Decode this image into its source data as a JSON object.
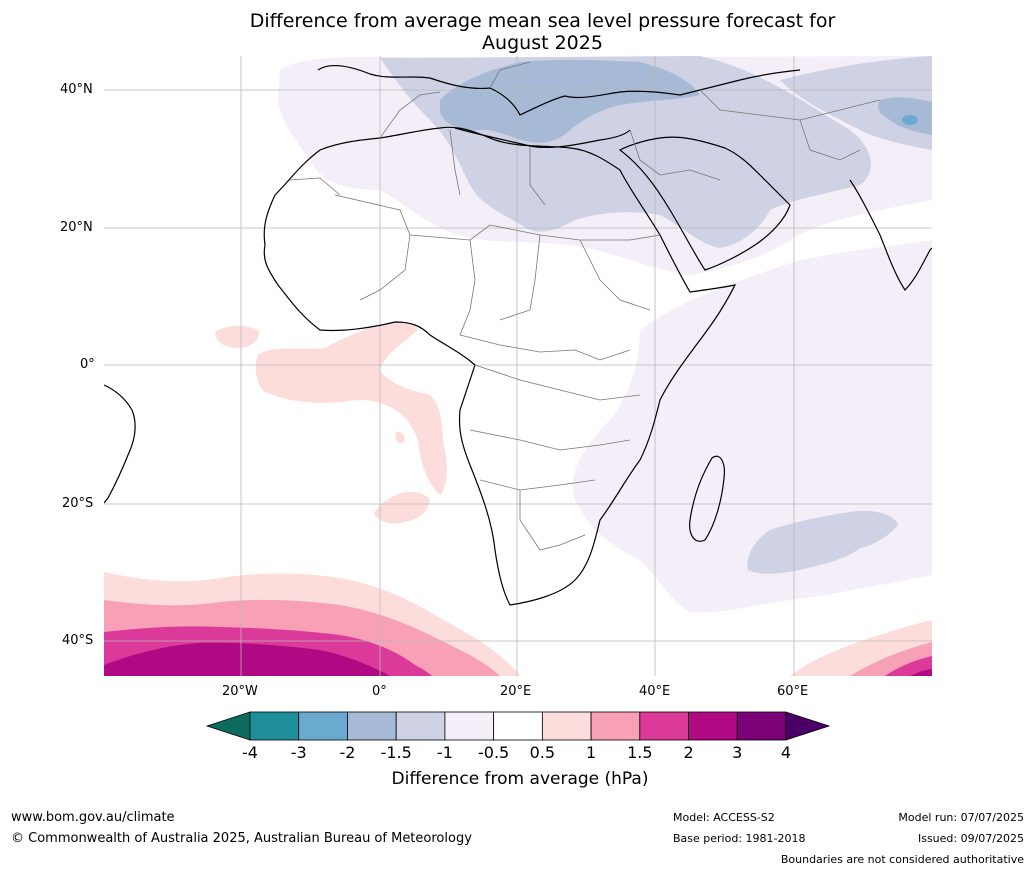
{
  "title_line1": "Difference from average mean sea level pressure forecast for",
  "title_line2": "August 2025",
  "lat_labels": [
    "40°N",
    "20°N",
    "0°",
    "20°S",
    "40°S"
  ],
  "lon_labels": [
    "20°W",
    "0°",
    "20°E",
    "40°E",
    "60°E"
  ],
  "colorbar": {
    "ticks": [
      "-4",
      "-3",
      "-2",
      "-1.5",
      "-1",
      "-0.5",
      "0.5",
      "1",
      "1.5",
      "2",
      "3",
      "4"
    ],
    "colors": [
      "#0d6b5e",
      "#1e8f9a",
      "#6aaad0",
      "#a6bad6",
      "#cfd1e5",
      "#f3eef7",
      "#ffffff",
      "#fddcdc",
      "#f8a0b6",
      "#dc3a9a",
      "#b10884",
      "#7b0177",
      "#4a0066"
    ],
    "title": "Difference from average (hPa)"
  },
  "footer": {
    "url": "www.bom.gov.au/climate",
    "copyright": "© Commonwealth of Australia 2025, Australian Bureau of Meteorology",
    "model": "Model: ACCESS-S2",
    "base_period": "Base period: 1981-2018",
    "model_run": "Model run: 07/07/2025",
    "issued": "Issued: 09/07/2025",
    "disclaimer": "Boundaries are not considered authoritative"
  }
}
